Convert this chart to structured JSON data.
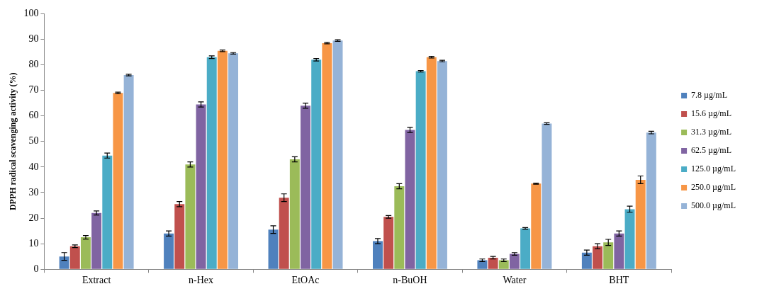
{
  "chart_data": {
    "type": "bar",
    "ylabel": "DPPH radical scavenging activity (%)",
    "categories": [
      "Extract",
      "n-Hex",
      "EtOAc",
      "n-BuOH",
      "Water",
      "BHT"
    ],
    "ylim": [
      0,
      100
    ],
    "yticks": [
      0,
      10,
      20,
      30,
      40,
      50,
      60,
      70,
      80,
      90,
      100
    ],
    "grid": false,
    "legend": "right",
    "series": [
      {
        "name": "7.8 µg/mL",
        "color": "#4f81bd",
        "values": [
          5,
          14,
          15.5,
          11,
          3.5,
          6.5
        ],
        "errors": [
          1.5,
          1,
          1.5,
          1,
          0.5,
          1
        ]
      },
      {
        "name": "15.6 µg/mL",
        "color": "#c0504d",
        "values": [
          9,
          25.5,
          28,
          20.5,
          4.5,
          9
        ],
        "errors": [
          0.5,
          1,
          1.5,
          0.5,
          0.5,
          1
        ]
      },
      {
        "name": "31.3 µg/mL",
        "color": "#9bbb59",
        "values": [
          12.5,
          41,
          43,
          32.5,
          3.5,
          10.5
        ],
        "errors": [
          0.7,
          1,
          1,
          1,
          0.5,
          1.2
        ]
      },
      {
        "name": "62.5 µg/mL",
        "color": "#8064a2",
        "values": [
          22,
          64.5,
          64,
          54.5,
          6,
          14
        ],
        "errors": [
          0.8,
          1,
          1,
          1,
          0.5,
          1
        ]
      },
      {
        "name": "125.0 µg/mL",
        "color": "#4bacc6",
        "values": [
          44.5,
          83,
          82,
          77.5,
          16,
          23.5
        ],
        "errors": [
          1,
          0.5,
          0.5,
          0.3,
          0.3,
          1.2
        ]
      },
      {
        "name": "250.0 µg/mL",
        "color": "#f79646",
        "values": [
          69,
          85.5,
          88.5,
          83,
          33.5,
          35
        ],
        "errors": [
          0.3,
          0.3,
          0.3,
          0.3,
          0.2,
          1.5
        ]
      },
      {
        "name": "500.0 µg/mL",
        "color": "#95b3d7",
        "values": [
          76,
          84.5,
          89.5,
          81.5,
          57,
          53.5
        ],
        "errors": [
          0.3,
          0.3,
          0.3,
          0.3,
          0.3,
          0.5
        ]
      }
    ]
  }
}
